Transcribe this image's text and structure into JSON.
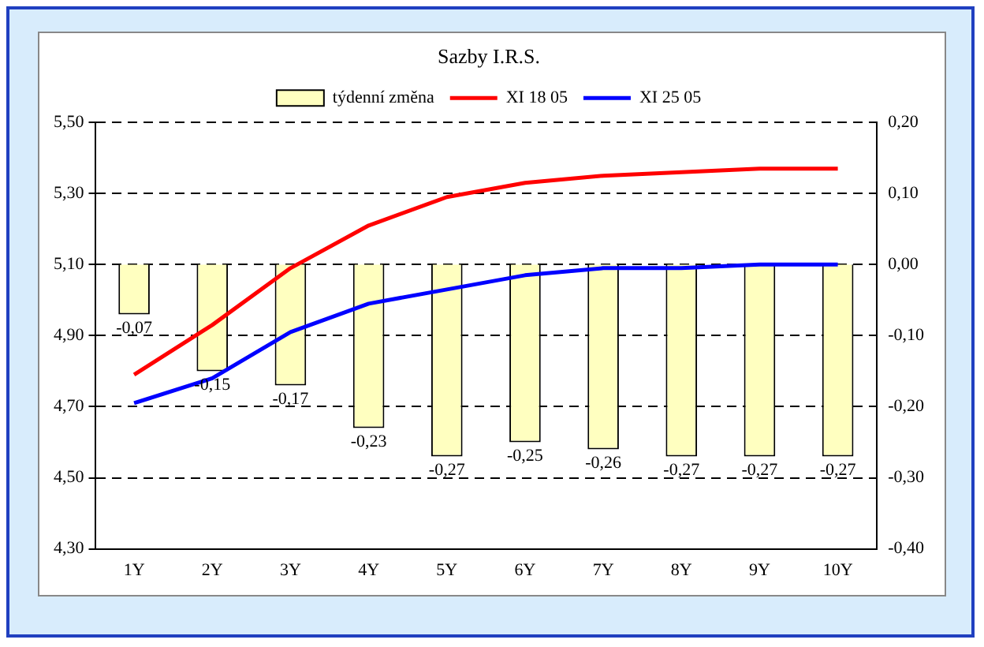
{
  "chart_data": {
    "type": "bar",
    "title": "Sazby I.R.S.",
    "categories": [
      "1Y",
      "2Y",
      "3Y",
      "4Y",
      "5Y",
      "6Y",
      "7Y",
      "8Y",
      "9Y",
      "10Y"
    ],
    "series": [
      {
        "name": "týdenní změna",
        "axis": "y2",
        "color": "#ffffc0",
        "values": [
          -0.07,
          -0.15,
          -0.17,
          -0.23,
          -0.27,
          -0.25,
          -0.26,
          -0.27,
          -0.27,
          -0.27
        ],
        "value_labels": [
          "-0,07",
          "-0,15",
          "-0,17",
          "-0,23",
          "-0,27",
          "-0,25",
          "-0,26",
          "-0,27",
          "-0,27",
          "-0,27"
        ]
      },
      {
        "name": "XI 18 05",
        "type": "line",
        "color": "#ff0000",
        "values": [
          4.79,
          4.93,
          5.09,
          5.21,
          5.29,
          5.33,
          5.35,
          5.36,
          5.37,
          5.37
        ]
      },
      {
        "name": "XI 25 05",
        "type": "line",
        "color": "#0000ff",
        "values": [
          4.71,
          4.78,
          4.91,
          4.99,
          5.03,
          5.07,
          5.09,
          5.09,
          5.1,
          5.1
        ]
      }
    ],
    "ylim": [
      4.3,
      5.5
    ],
    "yticks": [
      {
        "value": 4.3,
        "label": "4,30"
      },
      {
        "value": 4.5,
        "label": "4,50"
      },
      {
        "value": 4.7,
        "label": "4,70"
      },
      {
        "value": 4.9,
        "label": "4,90"
      },
      {
        "value": 5.1,
        "label": "5,10"
      },
      {
        "value": 5.3,
        "label": "5,30"
      },
      {
        "value": 5.5,
        "label": "5,50"
      }
    ],
    "y2lim": [
      -0.4,
      0.2
    ],
    "y2ticks": [
      {
        "value": -0.4,
        "label": "-0,40"
      },
      {
        "value": -0.3,
        "label": "-0,30"
      },
      {
        "value": -0.2,
        "label": "-0,20"
      },
      {
        "value": -0.1,
        "label": "-0,10"
      },
      {
        "value": 0,
        "label": "0,00"
      },
      {
        "value": 0.1,
        "label": "0,10"
      },
      {
        "value": 0.2,
        "label": "0,20"
      }
    ],
    "grid": "y",
    "legend": "top",
    "marker": "none",
    "line_style": "solid"
  }
}
